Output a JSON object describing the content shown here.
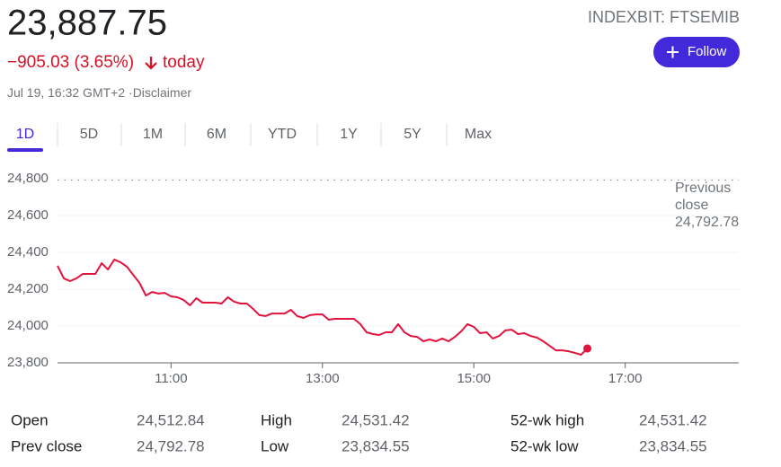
{
  "header": {
    "price": "23,887.75",
    "change": "−905.03 (3.65%)",
    "period": "today",
    "timestamp": "Jul 19, 16:32 GMT+2 ·",
    "disclaimer": "Disclaimer",
    "ticker": "INDEXBIT: FTSEMIB",
    "follow": "Follow"
  },
  "tabs": [
    "1D",
    "5D",
    "1M",
    "6M",
    "YTD",
    "1Y",
    "5Y",
    "Max"
  ],
  "chart_data": {
    "type": "line",
    "x": [
      570,
      575,
      580,
      585,
      590,
      595,
      600,
      605,
      610,
      615,
      620,
      625,
      630,
      635,
      640,
      645,
      650,
      655,
      660,
      665,
      670,
      675,
      680,
      685,
      690,
      695,
      700,
      705,
      710,
      715,
      720,
      725,
      730,
      735,
      740,
      745,
      750,
      755,
      760,
      765,
      770,
      775,
      780,
      785,
      790,
      795,
      800,
      805,
      810,
      815,
      820,
      825,
      830,
      835,
      840,
      845,
      850,
      855,
      860,
      865,
      870,
      875,
      880,
      885,
      890,
      895,
      900,
      905,
      910,
      915,
      920,
      925,
      930,
      935,
      940,
      945,
      950,
      955,
      960,
      965,
      970,
      975,
      980,
      985,
      990
    ],
    "series": [
      {
        "name": "FTSEMIB",
        "color": "#e0143c",
        "values": [
          24327,
          24259,
          24244,
          24259,
          24283,
          24283,
          24283,
          24341,
          24307,
          24361,
          24346,
          24322,
          24278,
          24234,
          24166,
          24185,
          24176,
          24180,
          24161,
          24156,
          24141,
          24112,
          24151,
          24127,
          24127,
          24127,
          24122,
          24156,
          24132,
          24122,
          24122,
          24093,
          24059,
          24054,
          24068,
          24068,
          24068,
          24088,
          24054,
          24044,
          24059,
          24063,
          24063,
          24034,
          24039,
          24039,
          24039,
          24039,
          24010,
          23966,
          23956,
          23951,
          23966,
          23966,
          24010,
          23966,
          23946,
          23941,
          23917,
          23927,
          23917,
          23932,
          23917,
          23941,
          23971,
          24010,
          23995,
          23961,
          23966,
          23932,
          23946,
          23976,
          23980,
          23956,
          23961,
          23946,
          23937,
          23917,
          23893,
          23868,
          23868,
          23863,
          23854,
          23844,
          23878
        ]
      }
    ],
    "xlim": [
      570,
      1110
    ],
    "xticks": [
      {
        "value": 660,
        "label": "11:00"
      },
      {
        "value": 780,
        "label": "13:00"
      },
      {
        "value": 900,
        "label": "15:00"
      },
      {
        "value": 1020,
        "label": "17:00"
      }
    ],
    "ylim": [
      23800,
      24800
    ],
    "yticks": [
      {
        "value": 23800,
        "label": "23,800"
      },
      {
        "value": 24000,
        "label": "24,000"
      },
      {
        "value": 24200,
        "label": "24,200"
      },
      {
        "value": 24400,
        "label": "24,400"
      },
      {
        "value": 24600,
        "label": "24,600"
      },
      {
        "value": 24800,
        "label": "24,800"
      }
    ],
    "grid": true,
    "previous_close": {
      "value": 24792.78,
      "label": "24,792.78"
    },
    "previous_close_title": "Previous close"
  },
  "stats": [
    [
      {
        "label": "Open",
        "value": "24,512.84"
      },
      {
        "label": "High",
        "value": "24,531.42"
      },
      {
        "label": "52-wk high",
        "value": "24,531.42"
      }
    ],
    [
      {
        "label": "Prev close",
        "value": "24,792.78"
      },
      {
        "label": "Low",
        "value": "23,834.55"
      },
      {
        "label": "52-wk low",
        "value": "23,834.55"
      }
    ]
  ]
}
